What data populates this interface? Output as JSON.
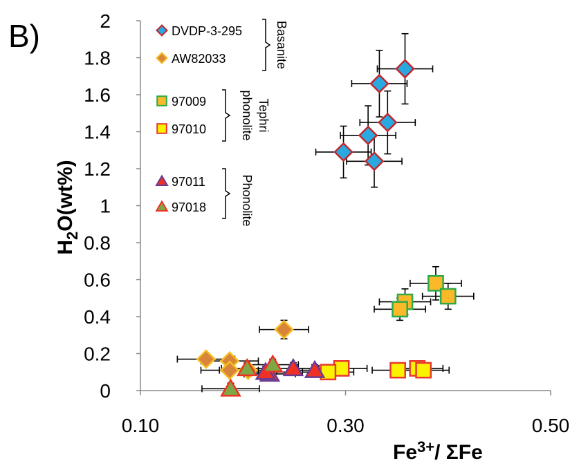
{
  "panel_label": "B)",
  "chart_data": {
    "type": "scatter",
    "xlabel": {
      "main": "Fe",
      "sup": "3+",
      "rest": "/ ΣFe"
    },
    "ylabel": {
      "pre": "H",
      "sub": "2",
      "post": "O(wt%)"
    },
    "xlim": [
      0.1,
      0.5
    ],
    "ylim": [
      0,
      2
    ],
    "xticks": [
      "0.10",
      "0.30",
      "0.50"
    ],
    "yticks": [
      "0",
      "0.2",
      "0.4",
      "0.6",
      "0.8",
      "1",
      "1.2",
      "1.4",
      "1.6",
      "1.8",
      "2"
    ],
    "grid": false,
    "legend_position": "top-left",
    "groups": [
      {
        "label": "Basanite",
        "series": [
          0,
          1
        ]
      },
      {
        "label": "Tephri phonolite",
        "lines": [
          "Tephri",
          "phonolite"
        ],
        "series": [
          2,
          3
        ]
      },
      {
        "label": "Phonolite",
        "series": [
          4,
          5
        ]
      }
    ],
    "series": [
      {
        "name": "DVDP-3-295",
        "marker": "diamond",
        "fill": "#29a9e0",
        "stroke": "#c0272d",
        "points": [
          {
            "x": 0.358,
            "y": 1.74,
            "xerr": 0.027,
            "yerr": 0.19
          },
          {
            "x": 0.333,
            "y": 1.66,
            "xerr": 0.027,
            "yerr": 0.18
          },
          {
            "x": 0.341,
            "y": 1.45,
            "xerr": 0.027,
            "yerr": 0.17
          },
          {
            "x": 0.322,
            "y": 1.38,
            "xerr": 0.027,
            "yerr": 0.16
          },
          {
            "x": 0.298,
            "y": 1.29,
            "xerr": 0.027,
            "yerr": 0.14
          },
          {
            "x": 0.328,
            "y": 1.24,
            "xerr": 0.027,
            "yerr": 0.14
          }
        ]
      },
      {
        "name": "AW82033",
        "marker": "diamond",
        "fill": "#d9843b",
        "stroke": "#f6be22",
        "points": [
          {
            "x": 0.24,
            "y": 0.33,
            "xerr": 0.024,
            "yerr": 0.05
          },
          {
            "x": 0.164,
            "y": 0.17,
            "xerr": 0.028,
            "yerr": 0.03
          },
          {
            "x": 0.187,
            "y": 0.16,
            "xerr": 0.028,
            "yerr": 0.03
          },
          {
            "x": 0.187,
            "y": 0.11,
            "xerr": 0.028,
            "yerr": 0.03
          },
          {
            "x": 0.205,
            "y": 0.11,
            "xerr": 0.028,
            "yerr": 0.03
          }
        ]
      },
      {
        "name": "97009",
        "marker": "square",
        "fill": "#fbb929",
        "stroke": "#2eaa4a",
        "points": [
          {
            "x": 0.388,
            "y": 0.58,
            "xerr": 0.025,
            "yerr": 0.09
          },
          {
            "x": 0.4,
            "y": 0.51,
            "xerr": 0.025,
            "yerr": 0.07
          },
          {
            "x": 0.358,
            "y": 0.48,
            "xerr": 0.025,
            "yerr": 0.07
          },
          {
            "x": 0.353,
            "y": 0.44,
            "xerr": 0.025,
            "yerr": 0.06
          }
        ]
      },
      {
        "name": "97010",
        "marker": "square",
        "fill": "#fbf200",
        "stroke": "#e8382f",
        "points": [
          {
            "x": 0.296,
            "y": 0.12,
            "xerr": 0.025,
            "yerr": 0.03
          },
          {
            "x": 0.283,
            "y": 0.1,
            "xerr": 0.025,
            "yerr": 0.03
          },
          {
            "x": 0.351,
            "y": 0.11,
            "xerr": 0.025,
            "yerr": 0.03
          },
          {
            "x": 0.37,
            "y": 0.12,
            "xerr": 0.025,
            "yerr": 0.03
          },
          {
            "x": 0.376,
            "y": 0.11,
            "xerr": 0.025,
            "yerr": 0.03
          }
        ]
      },
      {
        "name": "97011",
        "marker": "triangle",
        "fill": "#ee3124",
        "stroke": "#6a3b93",
        "points": [
          {
            "x": 0.226,
            "y": 0.09,
            "xerr": 0.025,
            "yerr": 0.03
          },
          {
            "x": 0.249,
            "y": 0.12,
            "xerr": 0.025,
            "yerr": 0.03
          },
          {
            "x": 0.27,
            "y": 0.11,
            "xerr": 0.025,
            "yerr": 0.03
          },
          {
            "x": 0.222,
            "y": 0.1,
            "xerr": 0.025,
            "yerr": 0.03
          }
        ]
      },
      {
        "name": "97018",
        "marker": "triangle",
        "fill": "#7da845",
        "stroke": "#ee3124",
        "points": [
          {
            "x": 0.229,
            "y": 0.14,
            "xerr": 0.025,
            "yerr": 0.03
          },
          {
            "x": 0.204,
            "y": 0.12,
            "xerr": 0.025,
            "yerr": 0.03
          },
          {
            "x": 0.188,
            "y": 0.01,
            "xerr": 0.028,
            "yerr": 0.03
          }
        ]
      }
    ]
  }
}
